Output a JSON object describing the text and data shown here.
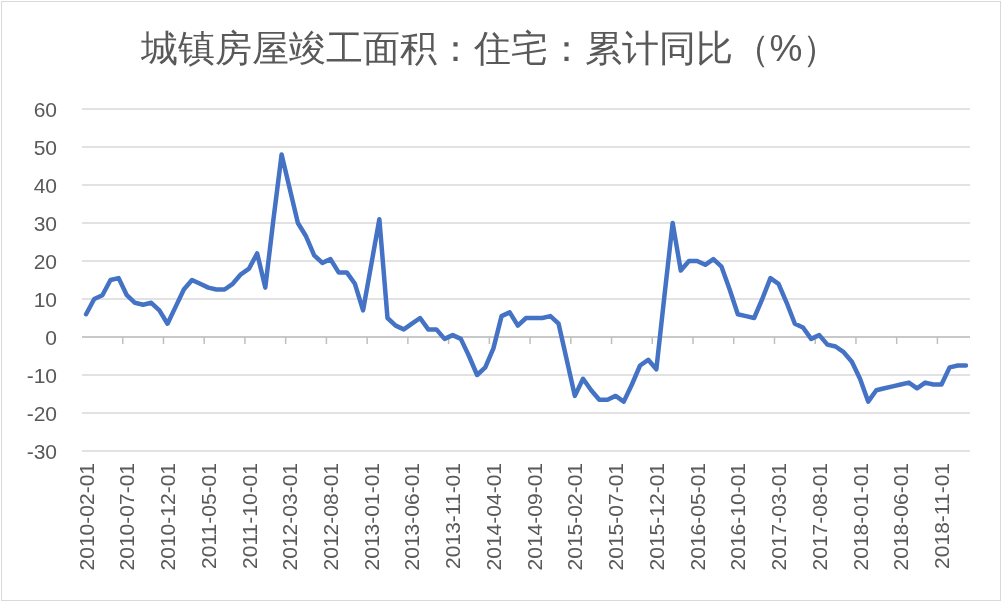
{
  "chart_data": {
    "type": "line",
    "title": "城镇房屋竣工面积：住宅：累计同比（%）",
    "categories": [
      "2010-02-01",
      null,
      null,
      null,
      null,
      "2010-07-01",
      null,
      null,
      null,
      null,
      "2010-12-01",
      null,
      null,
      null,
      null,
      "2011-05-01",
      null,
      null,
      null,
      null,
      "2011-10-01",
      null,
      null,
      null,
      null,
      "2012-03-01",
      null,
      null,
      null,
      null,
      "2012-08-01",
      null,
      null,
      null,
      null,
      "2013-01-01",
      null,
      null,
      null,
      null,
      "2013-06-01",
      null,
      null,
      null,
      null,
      "2013-11-01",
      null,
      null,
      null,
      null,
      "2014-04-01",
      null,
      null,
      null,
      null,
      "2014-09-01",
      null,
      null,
      null,
      null,
      "2015-02-01",
      null,
      null,
      null,
      null,
      "2015-07-01",
      null,
      null,
      null,
      null,
      "2015-12-01",
      null,
      null,
      null,
      null,
      "2016-05-01",
      null,
      null,
      null,
      null,
      "2016-10-01",
      null,
      null,
      null,
      null,
      "2017-03-01",
      null,
      null,
      null,
      null,
      "2017-08-01",
      null,
      null,
      null,
      null,
      "2018-01-01",
      null,
      null,
      null,
      null,
      "2018-06-01",
      null,
      null,
      null,
      null,
      "2018-11-01",
      null,
      null,
      null
    ],
    "series": [
      {
        "color": "#4472c4",
        "values": [
          6,
          10,
          11,
          15,
          15.5,
          11,
          9,
          8.5,
          9,
          7,
          3.5,
          8,
          12.5,
          15,
          14,
          13,
          12.5,
          12.5,
          14,
          16.5,
          18,
          22,
          13,
          31,
          48,
          39,
          30,
          26.5,
          21.5,
          19.5,
          20.5,
          17,
          17,
          14,
          7,
          19,
          31,
          5,
          3,
          2,
          3.5,
          5,
          2,
          2,
          -0.5,
          0.5,
          -0.5,
          -5,
          -10,
          -8,
          -3,
          5.5,
          6.5,
          3,
          5,
          5,
          5,
          5.5,
          3.5,
          -6,
          -15.5,
          -11,
          -14,
          -16.5,
          -16.5,
          -15.5,
          -17,
          -12.5,
          -7.5,
          -6,
          -8.5,
          11,
          30,
          17.5,
          20,
          20,
          19,
          20.5,
          18.5,
          12.5,
          6,
          5.5,
          5,
          10,
          15.5,
          14,
          9,
          3.5,
          2.5,
          -0.5,
          0.5,
          -2,
          -2.5,
          -4,
          -6.5,
          -11,
          -17,
          -14,
          -13.5,
          -13,
          -12.5,
          -12,
          -13.5,
          -12,
          -12.5,
          -12.5,
          -8,
          -7.5,
          -7.5
        ]
      }
    ],
    "ylim": [
      -30,
      60
    ],
    "yticks": [
      -30,
      -20,
      -10,
      0,
      10,
      20,
      30,
      40,
      50,
      60
    ],
    "grid": "y"
  }
}
